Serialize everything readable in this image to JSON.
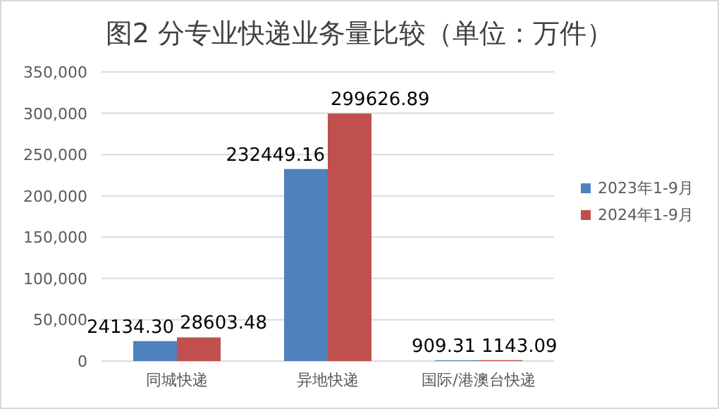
{
  "chart_data": {
    "type": "bar",
    "title": "图2 分专业快递业务量比较（单位：万件）",
    "categories": [
      "同城快递",
      "异地快递",
      "国际/港澳台快递"
    ],
    "series": [
      {
        "name": "2023年1-9月",
        "color": "#4f81bd",
        "values": [
          24134.3,
          232449.16,
          909.31
        ],
        "value_labels": [
          "24134.30",
          "232449.16",
          "909.31"
        ]
      },
      {
        "name": "2024年1-9月",
        "color": "#c0504d",
        "values": [
          28603.48,
          299626.89,
          1143.09
        ],
        "value_labels": [
          "28603.48",
          "299626.89",
          "1143.09"
        ]
      }
    ],
    "ylim": [
      0,
      350000
    ],
    "yticks": [
      {
        "value": 0,
        "label": "0"
      },
      {
        "value": 50000,
        "label": "50,000"
      },
      {
        "value": 100000,
        "label": "100,000"
      },
      {
        "value": 150000,
        "label": "150,000"
      },
      {
        "value": 200000,
        "label": "200,000"
      },
      {
        "value": 250000,
        "label": "250,000"
      },
      {
        "value": 300000,
        "label": "300,000"
      },
      {
        "value": 350000,
        "label": "350,000"
      }
    ],
    "grid": "y",
    "legend": "right"
  }
}
